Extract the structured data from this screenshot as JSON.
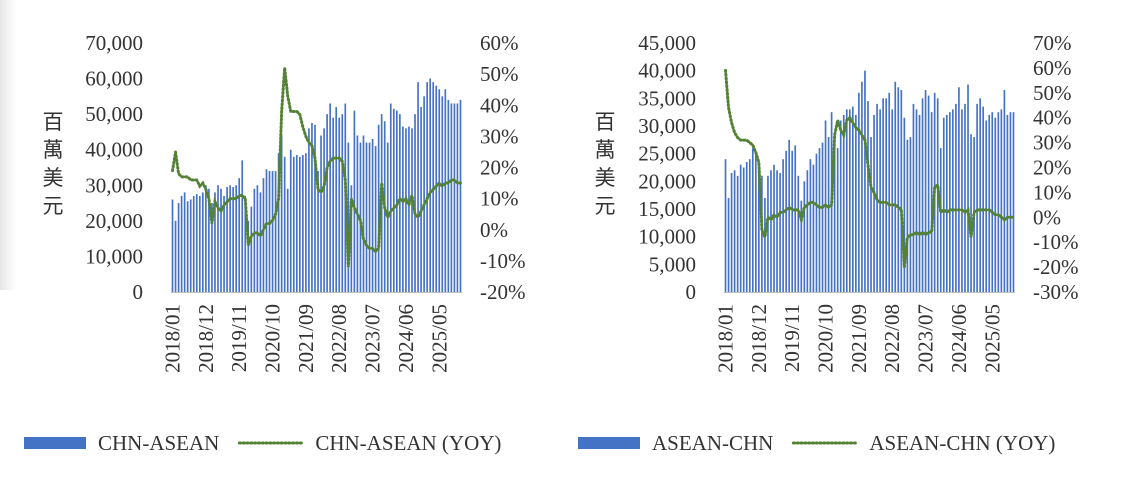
{
  "chart_data": [
    {
      "type": "bar",
      "title": "",
      "ylabel": "百萬美元",
      "ylim": [
        0,
        70000
      ],
      "y2lim": [
        -0.2,
        0.6
      ],
      "yticks": [
        "0",
        "10,000",
        "20,000",
        "30,000",
        "40,000",
        "50,000",
        "60,000",
        "70,000"
      ],
      "y2ticks": [
        "-20%",
        "-10%",
        "0%",
        "10%",
        "20%",
        "30%",
        "40%",
        "50%",
        "60%"
      ],
      "xticks": [
        "2018/01",
        "2018/12",
        "2019/11",
        "2020/10",
        "2021/09",
        "2022/08",
        "2023/07",
        "2024/06",
        "2025/05"
      ],
      "x_start": "2018/01",
      "months": 96,
      "grid": false,
      "legend_position": "bottom",
      "series": [
        {
          "name": "CHN-ASEAN",
          "type": "bar",
          "axis": "left",
          "color": "#4472C4",
          "values": [
            26000,
            20000,
            25000,
            27000,
            28000,
            25500,
            26000,
            27000,
            27500,
            27000,
            28000,
            30000,
            29000,
            25000,
            28000,
            30000,
            29000,
            27000,
            29500,
            30000,
            29500,
            30000,
            32000,
            37000,
            27000,
            20000,
            24000,
            29000,
            30000,
            28000,
            32000,
            34500,
            34000,
            34000,
            34000,
            39000,
            44000,
            38000,
            29000,
            40000,
            38000,
            38500,
            38000,
            38500,
            39000,
            46000,
            47500,
            47000,
            34000,
            44000,
            46000,
            50000,
            53000,
            49000,
            52000,
            49000,
            50000,
            53000,
            42000,
            30000,
            51000,
            44000,
            42000,
            44000,
            42000,
            42000,
            43000,
            41000,
            47000,
            50000,
            48000,
            42000,
            53000,
            51500,
            51000,
            50000,
            46500,
            46000,
            46500,
            46000,
            50000,
            59000,
            52000,
            55000,
            59000,
            60000,
            59000,
            58000,
            57000,
            55000,
            57000,
            54000,
            53000,
            53000,
            53000,
            54000
          ]
        },
        {
          "name": "CHN-ASEAN (YOY)",
          "type": "line",
          "style": "dotted",
          "axis": "right",
          "color": "#548235",
          "values": [
            0.19,
            0.25,
            0.18,
            0.17,
            0.17,
            0.17,
            0.16,
            0.16,
            0.16,
            0.14,
            0.15,
            0.13,
            0.1,
            0.02,
            0.09,
            0.07,
            0.06,
            0.08,
            0.09,
            0.1,
            0.1,
            0.1,
            0.11,
            0.11,
            0.1,
            -0.05,
            -0.02,
            -0.01,
            -0.01,
            -0.02,
            0.0,
            0.02,
            0.02,
            0.03,
            0.05,
            0.1,
            0.38,
            0.52,
            0.43,
            0.38,
            0.38,
            0.38,
            0.37,
            0.33,
            0.3,
            0.28,
            0.27,
            0.23,
            0.13,
            0.12,
            0.14,
            0.2,
            0.22,
            0.23,
            0.23,
            0.23,
            0.22,
            0.16,
            -0.12,
            0.1,
            0.07,
            0.05,
            0.03,
            -0.03,
            -0.05,
            -0.06,
            -0.06,
            -0.07,
            -0.06,
            0.15,
            0.07,
            0.04,
            0.06,
            0.07,
            0.08,
            0.1,
            0.09,
            0.1,
            0.08,
            0.11,
            0.05,
            0.04,
            0.06,
            0.08,
            0.1,
            0.12,
            0.13,
            0.14,
            0.15,
            0.14,
            0.15,
            0.15,
            0.16,
            0.16,
            0.15,
            0.15
          ]
        }
      ]
    },
    {
      "type": "bar",
      "title": "",
      "ylabel": "百萬美元",
      "ylim": [
        0,
        45000
      ],
      "y2lim": [
        -0.3,
        0.7
      ],
      "yticks": [
        "0",
        "5,000",
        "10,000",
        "15,000",
        "20,000",
        "25,000",
        "30,000",
        "35,000",
        "40,000",
        "45,000"
      ],
      "y2ticks": [
        "-30%",
        "-20%",
        "-10%",
        "0%",
        "10%",
        "20%",
        "30%",
        "40%",
        "50%",
        "60%",
        "70%"
      ],
      "xticks": [
        "2018/01",
        "2018/12",
        "2019/11",
        "2020/10",
        "2021/09",
        "2022/08",
        "2023/07",
        "2024/06",
        "2025/05"
      ],
      "x_start": "2018/01",
      "months": 96,
      "grid": false,
      "legend_position": "bottom",
      "series": [
        {
          "name": "ASEAN-CHN",
          "type": "bar",
          "axis": "left",
          "color": "#4472C4",
          "values": [
            24000,
            17000,
            21500,
            22000,
            21000,
            23000,
            22500,
            23500,
            24000,
            26000,
            25000,
            23000,
            21000,
            17000,
            21000,
            22000,
            23000,
            22000,
            21500,
            24000,
            25500,
            27500,
            25500,
            26500,
            21000,
            16500,
            20000,
            22000,
            24000,
            23000,
            25000,
            26000,
            27000,
            31000,
            28000,
            32500,
            28000,
            26000,
            31000,
            32000,
            33000,
            33000,
            33500,
            32000,
            36000,
            38000,
            40000,
            34500,
            28000,
            32000,
            34000,
            33000,
            35000,
            35000,
            36000,
            33000,
            38000,
            37000,
            36500,
            31500,
            27500,
            28000,
            34000,
            33000,
            32000,
            35000,
            36500,
            35500,
            32500,
            36000,
            35000,
            26000,
            31500,
            32000,
            32500,
            33000,
            34000,
            37000,
            33000,
            34000,
            37500,
            28500,
            28000,
            34000,
            35000,
            33500,
            31000,
            32000,
            32500,
            31500,
            32500,
            33000,
            36500,
            32000,
            32500,
            32500
          ]
        },
        {
          "name": "ASEAN-CHN (YOY)",
          "type": "line",
          "style": "dotted",
          "axis": "right",
          "color": "#548235",
          "values": [
            0.59,
            0.44,
            0.38,
            0.34,
            0.32,
            0.31,
            0.31,
            0.31,
            0.3,
            0.29,
            0.26,
            0.22,
            -0.05,
            -0.08,
            0.0,
            -0.01,
            0.01,
            0.0,
            0.02,
            0.02,
            0.03,
            0.04,
            0.03,
            0.03,
            0.03,
            -0.01,
            0.04,
            0.05,
            0.06,
            0.06,
            0.05,
            0.04,
            0.04,
            0.05,
            0.04,
            0.05,
            0.33,
            0.39,
            0.35,
            0.33,
            0.39,
            0.4,
            0.38,
            0.36,
            0.35,
            0.33,
            0.31,
            0.21,
            0.12,
            0.1,
            0.07,
            0.06,
            0.06,
            0.06,
            0.05,
            0.05,
            0.05,
            0.04,
            0.03,
            -0.2,
            -0.08,
            -0.07,
            -0.07,
            -0.06,
            -0.07,
            -0.06,
            -0.07,
            -0.06,
            -0.06,
            0.12,
            0.13,
            0.02,
            0.03,
            0.02,
            0.03,
            0.03,
            0.03,
            0.03,
            0.03,
            0.02,
            0.03,
            -0.08,
            0.02,
            0.03,
            0.03,
            0.03,
            0.03,
            0.03,
            0.02,
            0.01,
            0.01,
            0.0,
            -0.01,
            0.0,
            0.0,
            0.0
          ]
        }
      ]
    }
  ]
}
